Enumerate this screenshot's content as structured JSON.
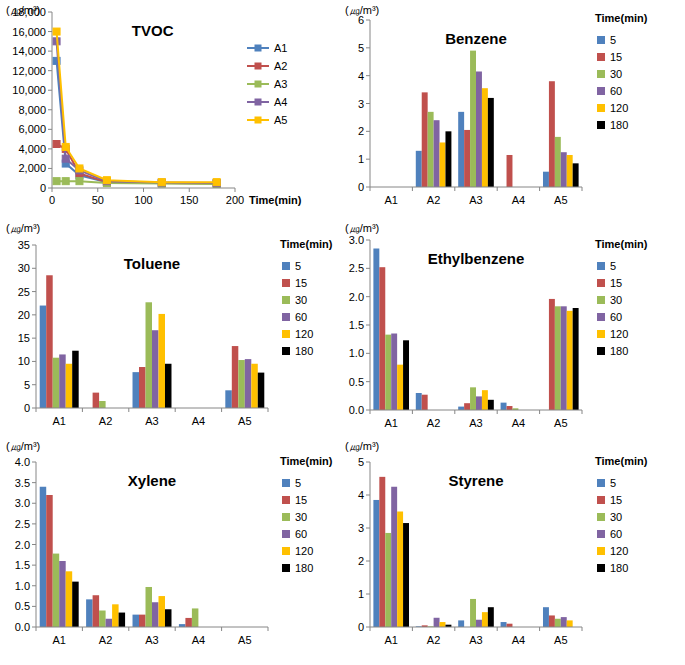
{
  "chart_data": [
    {
      "type": "line",
      "title": "TVOC",
      "y_label": "(㎍/m³)",
      "x_label": "Time(min)",
      "x": [
        5,
        15,
        30,
        60,
        120,
        180
      ],
      "series": [
        {
          "name": "A1",
          "color": "#4F81BD",
          "marker": "square",
          "values": [
            13000,
            2500,
            1300,
            600,
            500,
            500
          ]
        },
        {
          "name": "A2",
          "color": "#C0504D",
          "marker": "square",
          "values": [
            4500,
            4000,
            1500,
            600,
            500,
            450
          ]
        },
        {
          "name": "A3",
          "color": "#9BBB59",
          "marker": "square",
          "values": [
            700,
            700,
            700,
            500,
            450,
            400
          ]
        },
        {
          "name": "A4",
          "color": "#8064A2",
          "marker": "square",
          "values": [
            15000,
            3000,
            1800,
            700,
            550,
            500
          ]
        },
        {
          "name": "A5",
          "color": "#FFC000",
          "marker": "square",
          "values": [
            16000,
            4200,
            2000,
            800,
            600,
            600
          ]
        }
      ],
      "xlim": [
        0,
        200
      ],
      "xticks": [
        0,
        50,
        100,
        150,
        200
      ],
      "ylim": [
        0,
        18000
      ],
      "yticks": [
        0,
        {
          "value": 2000,
          "label": "2,000"
        },
        {
          "value": 4000,
          "label": "4,000"
        },
        {
          "value": 6000,
          "label": "6,000"
        },
        {
          "value": 8000,
          "label": "8,000"
        },
        {
          "value": 10000,
          "label": "10,000"
        },
        {
          "value": 12000,
          "label": "12,000"
        },
        {
          "value": 14000,
          "label": "14,000"
        },
        {
          "value": 16000,
          "label": "16,000"
        },
        {
          "value": 18000,
          "label": "18,000"
        }
      ],
      "grid": false,
      "legend": "right"
    },
    {
      "type": "bar",
      "title": "Benzene",
      "y_label": "(㎍/m³)",
      "legend_title": "Time(min)",
      "categories": [
        "A1",
        "A2",
        "A3",
        "A4",
        "A5"
      ],
      "series": [
        {
          "name": "5",
          "color": "#4F81BD",
          "values": [
            0,
            1.3,
            2.7,
            0,
            0.55
          ]
        },
        {
          "name": "15",
          "color": "#C0504D",
          "values": [
            0,
            3.4,
            2.05,
            1.15,
            3.8
          ]
        },
        {
          "name": "30",
          "color": "#9BBB59",
          "values": [
            0,
            2.7,
            4.9,
            0,
            1.8
          ]
        },
        {
          "name": "60",
          "color": "#8064A2",
          "values": [
            0,
            2.4,
            4.15,
            0,
            1.25
          ]
        },
        {
          "name": "120",
          "color": "#FFC000",
          "values": [
            0,
            1.6,
            3.55,
            0,
            1.15
          ]
        },
        {
          "name": "180",
          "color": "#000000",
          "values": [
            0,
            2.0,
            3.2,
            0,
            0.85
          ]
        }
      ],
      "ylim": [
        0,
        6
      ],
      "yticks": [
        0,
        1,
        2,
        3,
        4,
        5,
        6
      ],
      "grid": false,
      "legend": "right"
    },
    {
      "type": "bar",
      "title": "Toluene",
      "y_label": "(㎍/m³)",
      "legend_title": "Time(min)",
      "categories": [
        "A1",
        "A2",
        "A3",
        "A4",
        "A5"
      ],
      "series": [
        {
          "name": "5",
          "color": "#4F81BD",
          "values": [
            22,
            0,
            7.7,
            0,
            3.8
          ]
        },
        {
          "name": "15",
          "color": "#C0504D",
          "values": [
            28.5,
            3.3,
            8.8,
            0,
            13.3
          ]
        },
        {
          "name": "30",
          "color": "#9BBB59",
          "values": [
            10.8,
            1.5,
            22.7,
            0,
            10.3
          ]
        },
        {
          "name": "60",
          "color": "#8064A2",
          "values": [
            11.5,
            0,
            16.7,
            0,
            10.5
          ]
        },
        {
          "name": "120",
          "color": "#FFC000",
          "values": [
            9.5,
            0,
            20.2,
            0,
            9.5
          ]
        },
        {
          "name": "180",
          "color": "#000000",
          "values": [
            12.3,
            0,
            9.5,
            0,
            7.6
          ]
        }
      ],
      "ylim": [
        0,
        35
      ],
      "yticks": [
        0,
        5,
        10,
        15,
        20,
        25,
        30,
        35
      ],
      "grid": false,
      "legend": "right"
    },
    {
      "type": "bar",
      "title": "Ethylbenzene",
      "y_label": "(㎍/m³)",
      "legend_title": "Time(min)",
      "categories": [
        "A1",
        "A2",
        "A3",
        "A4",
        "A5"
      ],
      "series": [
        {
          "name": "5",
          "color": "#4F81BD",
          "values": [
            2.85,
            0.3,
            0.06,
            0.13,
            0
          ]
        },
        {
          "name": "15",
          "color": "#C0504D",
          "values": [
            2.52,
            0.27,
            0.12,
            0.07,
            1.96
          ]
        },
        {
          "name": "30",
          "color": "#9BBB59",
          "values": [
            1.33,
            0,
            0.4,
            0.03,
            1.83
          ]
        },
        {
          "name": "60",
          "color": "#8064A2",
          "values": [
            1.35,
            0,
            0.24,
            0,
            1.83
          ]
        },
        {
          "name": "120",
          "color": "#FFC000",
          "values": [
            0.8,
            0,
            0.35,
            0,
            1.75
          ]
        },
        {
          "name": "180",
          "color": "#000000",
          "values": [
            1.23,
            0,
            0.18,
            0,
            1.8
          ]
        }
      ],
      "ylim": [
        0,
        3
      ],
      "yticks": [
        {
          "value": 0,
          "label": "0.0"
        },
        0.5,
        {
          "value": 1,
          "label": "1.0"
        },
        1.5,
        {
          "value": 2,
          "label": "2.0"
        },
        2.5,
        {
          "value": 3,
          "label": "3.0"
        }
      ],
      "grid": false,
      "legend": "right"
    },
    {
      "type": "bar",
      "title": "Xylene",
      "y_label": "(㎍/m³)",
      "legend_title": "Time(min)",
      "categories": [
        "A1",
        "A2",
        "A3",
        "A4",
        "A5"
      ],
      "series": [
        {
          "name": "5",
          "color": "#4F81BD",
          "values": [
            3.4,
            0.67,
            0.3,
            0.07,
            0
          ]
        },
        {
          "name": "15",
          "color": "#C0504D",
          "values": [
            3.2,
            0.77,
            0.3,
            0.22,
            0
          ]
        },
        {
          "name": "30",
          "color": "#9BBB59",
          "values": [
            1.78,
            0.4,
            0.97,
            0.45,
            0
          ]
        },
        {
          "name": "60",
          "color": "#8064A2",
          "values": [
            1.6,
            0.2,
            0.6,
            0,
            0
          ]
        },
        {
          "name": "120",
          "color": "#FFC000",
          "values": [
            1.35,
            0.55,
            0.75,
            0,
            0
          ]
        },
        {
          "name": "180",
          "color": "#000000",
          "values": [
            1.1,
            0.35,
            0.43,
            0,
            0
          ]
        }
      ],
      "ylim": [
        0,
        4
      ],
      "yticks": [
        {
          "value": 0,
          "label": "0.0"
        },
        0.5,
        {
          "value": 1,
          "label": "1.0"
        },
        1.5,
        {
          "value": 2,
          "label": "2.0"
        },
        2.5,
        {
          "value": 3,
          "label": "3.0"
        },
        3.5,
        {
          "value": 4,
          "label": "4.0"
        }
      ],
      "grid": false,
      "legend": "right"
    },
    {
      "type": "bar",
      "title": "Styrene",
      "y_label": "(㎍/m³)",
      "legend_title": "Time(min)",
      "categories": [
        "A1",
        "A2",
        "A3",
        "A4",
        "A5"
      ],
      "series": [
        {
          "name": "5",
          "color": "#4F81BD",
          "values": [
            3.85,
            0.02,
            0.2,
            0.15,
            0.6
          ]
        },
        {
          "name": "15",
          "color": "#C0504D",
          "values": [
            4.55,
            0.05,
            0,
            0.1,
            0.35
          ]
        },
        {
          "name": "30",
          "color": "#9BBB59",
          "values": [
            2.85,
            0.02,
            0.85,
            0,
            0.25
          ]
        },
        {
          "name": "60",
          "color": "#8064A2",
          "values": [
            4.25,
            0.28,
            0.22,
            0,
            0.3
          ]
        },
        {
          "name": "120",
          "color": "#FFC000",
          "values": [
            3.5,
            0.15,
            0.45,
            0,
            0.2
          ]
        },
        {
          "name": "180",
          "color": "#000000",
          "values": [
            3.15,
            0.07,
            0.6,
            0,
            0
          ]
        }
      ],
      "ylim": [
        0,
        5
      ],
      "yticks": [
        0,
        1,
        2,
        3,
        4,
        5
      ],
      "grid": false,
      "legend": "right"
    }
  ]
}
